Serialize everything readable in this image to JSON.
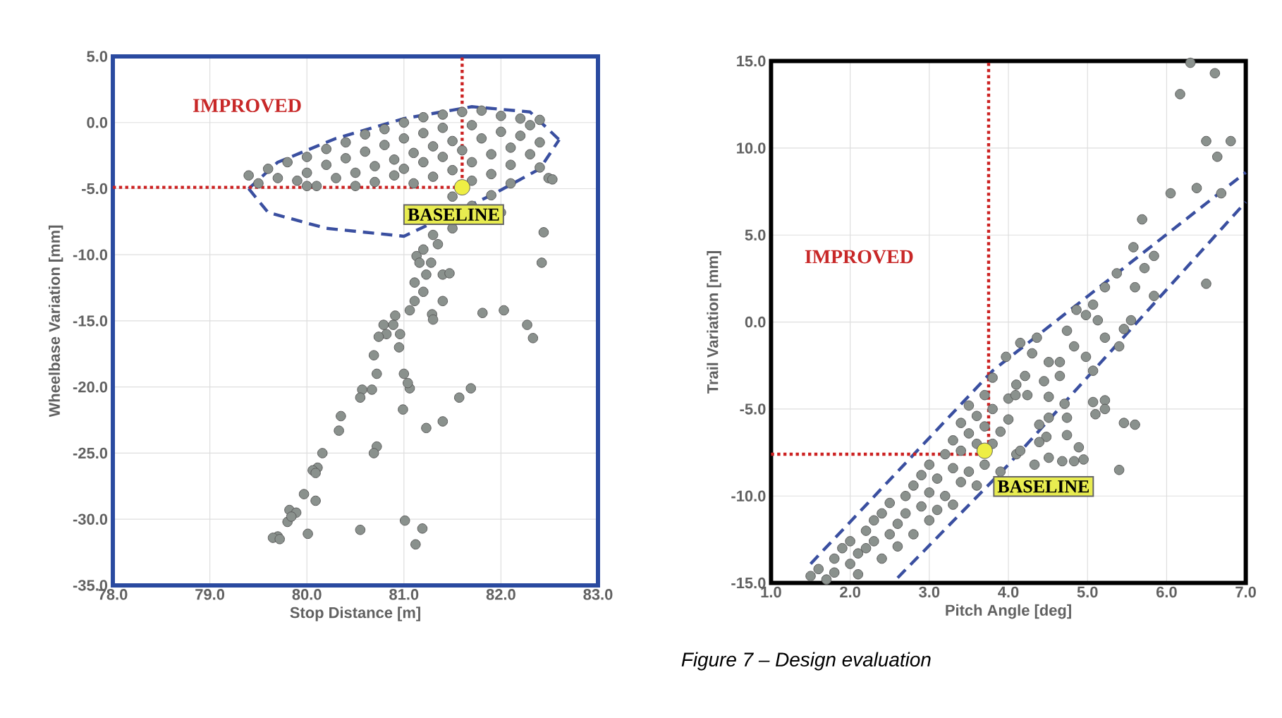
{
  "chart_data": [
    {
      "type": "scatter",
      "xlabel": "Stop Distance [m]",
      "ylabel": "Wheelbase Variation [mm]",
      "xlim": [
        78,
        83
      ],
      "ylim": [
        -35,
        5
      ],
      "grid": true,
      "xticks": [
        {
          "value": 78,
          "label": "78.0"
        },
        {
          "value": 79,
          "label": "79.0"
        },
        {
          "value": 80,
          "label": "80.0"
        },
        {
          "value": 81,
          "label": "81.0"
        },
        {
          "value": 82,
          "label": "82.0"
        },
        {
          "value": 83,
          "label": "83.0"
        }
      ],
      "yticks": [
        {
          "value": -35,
          "label": "-35.0"
        },
        {
          "value": -30,
          "label": "-30.0"
        },
        {
          "value": -25,
          "label": "-25.0"
        },
        {
          "value": -20,
          "label": "-20.0"
        },
        {
          "value": -15,
          "label": "-15.0"
        },
        {
          "value": -10,
          "label": "-10.0"
        },
        {
          "value": -5,
          "label": "-5.0"
        },
        {
          "value": 0,
          "label": "0.0"
        },
        {
          "value": 5,
          "label": "5.0"
        }
      ],
      "series": [
        {
          "type": "scatter",
          "marker": "circle",
          "color": "#8a918d",
          "x": [
            79.4,
            79.5,
            79.6,
            79.7,
            79.8,
            79.9,
            80.0,
            80.0,
            80.1,
            80.2,
            80.2,
            80.3,
            80.4,
            80.4,
            80.5,
            80.5,
            80.6,
            80.6,
            80.7,
            80.7,
            80.8,
            80.8,
            80.9,
            80.9,
            81.0,
            81.0,
            81.0,
            81.1,
            81.1,
            81.2,
            81.2,
            81.2,
            81.3,
            81.3,
            81.4,
            81.4,
            81.4,
            81.5,
            81.5,
            81.5,
            81.6,
            81.6,
            81.7,
            81.7,
            81.7,
            81.7,
            81.8,
            81.8,
            81.9,
            81.9,
            81.9,
            82.0,
            82.0,
            82.0,
            82.1,
            82.1,
            82.1,
            82.2,
            82.2,
            82.3,
            82.3,
            82.4,
            82.4,
            82.4,
            81.5,
            80.0,
            81.35,
            81.2,
            81.3,
            81.13,
            81.4,
            81.47,
            82.44,
            82.49,
            82.53,
            82.42,
            81.81,
            82.03,
            82.27,
            82.33,
            81.69,
            81.57,
            81.4,
            81.23,
            81.4,
            81.29,
            81.3,
            81.2,
            81.11,
            81.23,
            81.16,
            81.28,
            81.11,
            81.06,
            80.91,
            80.89,
            80.79,
            80.82,
            80.96,
            80.74,
            80.95,
            80.69,
            80.72,
            81.0,
            81.06,
            81.04,
            80.99,
            80.67,
            80.57,
            80.55,
            80.35,
            80.33,
            80.72,
            80.69,
            80.16,
            80.11,
            80.06,
            80.09,
            79.97,
            80.09,
            79.82,
            79.89,
            79.8,
            79.84,
            80.01,
            79.7,
            79.65,
            79.72,
            80.55,
            81.01,
            81.19,
            81.12
          ],
          "values": [
            -4.0,
            -4.6,
            -3.5,
            -4.2,
            -3.0,
            -4.4,
            -2.6,
            -3.8,
            -4.8,
            -2.0,
            -3.2,
            -4.2,
            -1.5,
            -2.7,
            -3.8,
            -4.8,
            -0.9,
            -2.2,
            -3.3,
            -4.5,
            -0.5,
            -1.7,
            -2.8,
            -4.0,
            0.0,
            -1.2,
            -3.5,
            -2.3,
            -4.6,
            0.4,
            -0.8,
            -3.0,
            -1.8,
            -4.1,
            0.6,
            -0.4,
            -2.6,
            -1.4,
            -3.6,
            -5.6,
            0.8,
            -2.1,
            -0.2,
            -3.0,
            -4.4,
            -6.3,
            0.9,
            -1.2,
            -2.4,
            -3.9,
            -5.5,
            0.5,
            -0.7,
            -6.8,
            -1.9,
            -3.2,
            -4.6,
            0.3,
            -1.0,
            -2.4,
            -0.2,
            -1.5,
            0.2,
            -3.4,
            -8.0,
            -4.8,
            -9.2,
            -9.6,
            -8.5,
            -10.1,
            -11.5,
            -11.4,
            -8.3,
            -4.2,
            -4.3,
            -10.6,
            -14.4,
            -14.2,
            -15.3,
            -16.3,
            -20.1,
            -20.8,
            -22.6,
            -23.1,
            -13.5,
            -14.5,
            -14.9,
            -12.8,
            -12.1,
            -11.5,
            -10.6,
            -10.6,
            -13.5,
            -14.2,
            -14.6,
            -15.3,
            -15.3,
            -16.0,
            -16.0,
            -16.2,
            -17.0,
            -17.6,
            -19.0,
            -19.0,
            -20.1,
            -19.7,
            -21.7,
            -20.2,
            -20.2,
            -20.8,
            -22.2,
            -23.3,
            -24.5,
            -25.0,
            -25.0,
            -26.1,
            -26.3,
            -26.5,
            -28.1,
            -28.6,
            -29.3,
            -29.5,
            -30.2,
            -29.8,
            -31.1,
            -31.3,
            -31.4,
            -31.5,
            -30.8,
            -30.1,
            -30.7,
            -31.9
          ]
        },
        {
          "type": "line",
          "marker": "none",
          "line_style": "dashed",
          "color": "#3a4fa0",
          "x": [
            79.4,
            79.7,
            80.3,
            81.0,
            81.7,
            82.3,
            82.6
          ],
          "values": [
            -5.0,
            -3.0,
            -1.2,
            0.3,
            1.2,
            0.8,
            -1.3
          ]
        },
        {
          "type": "line",
          "marker": "none",
          "line_style": "dashed",
          "color": "#3a4fa0",
          "x": [
            79.4,
            79.6,
            80.2,
            81.0,
            81.9,
            82.4,
            82.6
          ],
          "values": [
            -5.0,
            -6.8,
            -8.0,
            -8.6,
            -5.5,
            -3.5,
            -1.3
          ]
        },
        {
          "type": "line",
          "marker": "none",
          "line_style": "dotted",
          "color": "#cc2222",
          "x": [
            78,
            81.6,
            81.6
          ],
          "values": [
            -4.9,
            -4.9,
            5
          ]
        },
        {
          "type": "scatter",
          "marker": "circle",
          "color": "#eeee44",
          "x": [
            81.6
          ],
          "values": [
            -4.9
          ]
        }
      ],
      "annotations": [
        "IMPROVED",
        {
          "text": "BASELINE",
          "x": 81.6,
          "y": -4.9
        }
      ]
    },
    {
      "type": "scatter",
      "xlabel": "Pitch Angle [deg]",
      "ylabel": "Trail Variation [mm]",
      "xlim": [
        1,
        7
      ],
      "ylim": [
        -15,
        15
      ],
      "grid": true,
      "xticks": [
        {
          "value": 1,
          "label": "1.0"
        },
        {
          "value": 2,
          "label": "2.0"
        },
        {
          "value": 3,
          "label": "3.0"
        },
        {
          "value": 4,
          "label": "4.0"
        },
        {
          "value": 5,
          "label": "5.0"
        },
        {
          "value": 6,
          "label": "6.0"
        },
        {
          "value": 7,
          "label": "7.0"
        }
      ],
      "yticks": [
        {
          "value": -15,
          "label": "-15.0"
        },
        {
          "value": -10,
          "label": "-10.0"
        },
        {
          "value": -5,
          "label": "-5.0"
        },
        {
          "value": 0,
          "label": "0.0"
        },
        {
          "value": 5,
          "label": "5.0"
        },
        {
          "value": 10,
          "label": "10.0"
        },
        {
          "value": 15,
          "label": "15.0"
        }
      ],
      "series": [
        {
          "type": "scatter",
          "marker": "circle",
          "color": "#8a918d",
          "x": [
            1.5,
            1.6,
            1.7,
            1.8,
            1.8,
            1.9,
            2.0,
            2.0,
            2.1,
            2.1,
            2.2,
            2.2,
            2.3,
            2.3,
            2.4,
            2.4,
            2.5,
            2.5,
            2.6,
            2.6,
            2.7,
            2.7,
            2.8,
            2.8,
            2.9,
            2.9,
            3.0,
            3.0,
            3.0,
            3.1,
            3.1,
            3.2,
            3.2,
            3.3,
            3.3,
            3.3,
            3.4,
            3.4,
            3.4,
            3.5,
            3.5,
            3.5,
            3.6,
            3.6,
            3.6,
            3.7,
            3.7,
            3.7,
            3.8,
            3.8,
            3.8,
            3.9,
            3.9,
            4.0,
            4.0,
            4.1,
            4.1,
            6.3,
            6.61,
            6.17,
            6.5,
            6.81,
            6.64,
            6.38,
            6.69,
            6.05,
            5.69,
            5.84,
            5.58,
            5.72,
            5.6,
            5.84,
            6.5,
            5.37,
            5.22,
            5.07,
            4.98,
            4.86,
            5.13,
            5.55,
            4.74,
            4.83,
            5.22,
            5.46,
            5.4,
            4.98,
            5.07,
            4.36,
            4.3,
            4.51,
            4.65,
            4.21,
            4.45,
            4.65,
            4.24,
            4.51,
            4.71,
            5.07,
            5.22,
            5.22,
            5.1,
            5.46,
            5.6,
            4.74,
            4.51,
            4.39,
            4.48,
            4.74,
            4.89,
            4.39,
            4.51,
            4.68,
            4.83,
            4.95,
            4.33,
            4.15,
            5.4,
            4.09,
            3.97,
            4.15
          ],
          "values": [
            -14.6,
            -14.2,
            -14.8,
            -13.6,
            -14.4,
            -13.0,
            -13.9,
            -12.6,
            -14.5,
            -13.3,
            -12.0,
            -13.0,
            -11.4,
            -12.6,
            -13.6,
            -11.0,
            -12.2,
            -10.4,
            -11.6,
            -12.9,
            -10.0,
            -11.0,
            -9.4,
            -12.2,
            -10.6,
            -8.8,
            -11.4,
            -9.8,
            -8.2,
            -10.8,
            -9.0,
            -7.6,
            -10.0,
            -8.4,
            -6.8,
            -10.5,
            -9.2,
            -7.4,
            -5.8,
            -8.6,
            -6.4,
            -4.8,
            -9.4,
            -7.0,
            -5.4,
            -8.2,
            -6.0,
            -4.2,
            -3.2,
            -5.0,
            -7.0,
            -8.6,
            -6.3,
            -4.4,
            -5.6,
            -7.6,
            -3.6,
            14.9,
            14.3,
            13.1,
            10.4,
            10.4,
            9.5,
            7.7,
            7.4,
            7.4,
            5.9,
            3.8,
            4.3,
            3.1,
            2.0,
            1.5,
            2.2,
            2.8,
            2.0,
            1.0,
            0.4,
            0.7,
            0.1,
            0.1,
            -0.5,
            -1.4,
            -0.9,
            -0.4,
            -1.4,
            -2.0,
            -2.8,
            -0.9,
            -1.8,
            -2.3,
            -2.3,
            -3.1,
            -3.4,
            -3.1,
            -4.2,
            -4.3,
            -4.7,
            -4.6,
            -4.5,
            -5.0,
            -5.3,
            -5.8,
            -5.9,
            -5.5,
            -5.5,
            -5.9,
            -6.6,
            -6.5,
            -7.2,
            -6.9,
            -7.8,
            -8.0,
            -8.0,
            -7.9,
            -8.2,
            -7.4,
            -8.5,
            -4.2,
            -2.0,
            -1.2
          ]
        },
        {
          "type": "line",
          "marker": "none",
          "line_style": "dashed",
          "color": "#3a4fa0",
          "x": [
            1.5,
            3.8,
            7.0
          ],
          "values": [
            -13.9,
            -2.8,
            8.6
          ]
        },
        {
          "type": "line",
          "marker": "none",
          "line_style": "dashed",
          "color": "#3a4fa0",
          "x": [
            2.6,
            4.0,
            7.0
          ],
          "values": [
            -14.7,
            -8.2,
            6.9
          ]
        },
        {
          "type": "line",
          "marker": "none",
          "line_style": "dotted",
          "color": "#cc2222",
          "x": [
            1,
            3.75,
            3.75
          ],
          "values": [
            -7.6,
            -7.6,
            15
          ]
        },
        {
          "type": "scatter",
          "marker": "circle",
          "color": "#eeee44",
          "x": [
            3.7
          ],
          "values": [
            -7.4
          ]
        }
      ],
      "annotations": [
        "IMPROVED",
        {
          "text": "BASELINE",
          "x": 3.7,
          "y": -7.4
        },
        "Figure 7 – Design evaluation"
      ]
    }
  ]
}
